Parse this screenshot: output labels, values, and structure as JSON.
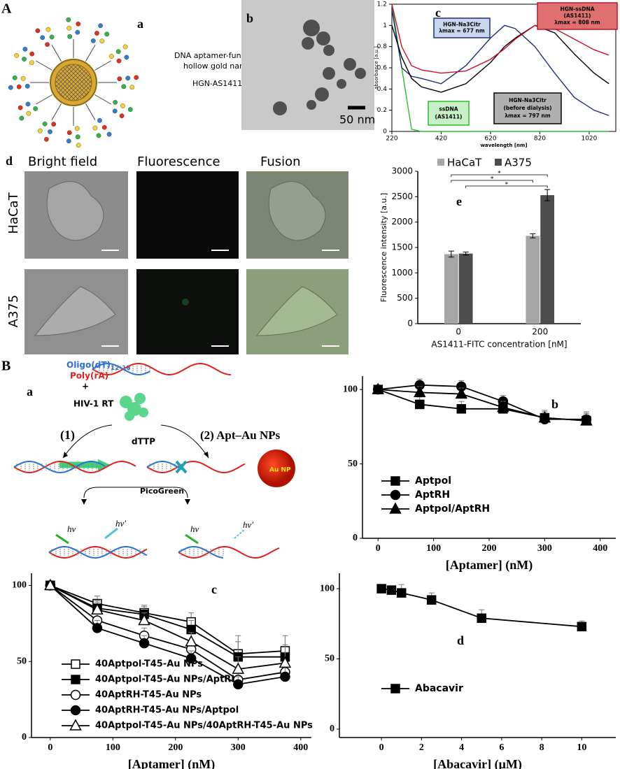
{
  "figure": {
    "label_A": "A",
    "label_B": "B"
  },
  "panel_Aa": {
    "label": "a",
    "line1": "DNA aptamer-functionalized",
    "line2": "hollow gold nanoshells",
    "line3": "HGN-AS1411"
  },
  "panel_Ab": {
    "label": "b",
    "scale": "50 nm"
  },
  "panel_d": {
    "label": "d",
    "columns": [
      "Bright field",
      "Fluorescence",
      "Fusion"
    ],
    "rows": [
      "HaCaT",
      "A375"
    ]
  },
  "panel_Ba": {
    "label": "a",
    "oligo": "Oligo(dT)",
    "oligo_sub": "12-18",
    "poly": "Poly(rA)",
    "plus": "+",
    "rt": "HIV-1 RT",
    "dttp": "dTTP",
    "route1": "(1)",
    "route2": "(2) Apt–Au NPs",
    "picogreen": "PicoGreen",
    "aunp": "Au NP",
    "hv": [
      "hν",
      "hν′",
      "hν",
      "hν′"
    ]
  },
  "chart_data": [
    {
      "type": "line",
      "panel": "c",
      "xlabel": "wavelength [nm]",
      "ylabel": "absorbance [a.u.]",
      "box": true,
      "x": [
        220,
        260,
        300,
        340,
        420,
        520,
        620,
        677,
        720,
        800,
        880,
        960,
        1040,
        1100
      ],
      "xlim": [
        220,
        1128
      ],
      "xticks": [
        220,
        420,
        620,
        820,
        1020
      ],
      "ylim": [
        0,
        1.2
      ],
      "yticks": [
        0,
        0.2,
        0.4,
        0.6,
        0.8,
        1,
        1.2
      ],
      "series": [
        {
          "name": "ssDNA",
          "notes": [
            "(AS1411)"
          ],
          "color": "#2bbf2b",
          "box_fill": "#c8f0c8",
          "values": [
            1.2,
            0.6,
            0.02,
            0,
            0,
            0,
            0,
            0,
            0,
            0,
            0,
            0,
            0,
            0
          ]
        },
        {
          "name": "HGN-Na3Citr",
          "notes": [
            "λmax = 677 nm"
          ],
          "color": "#1f2f7a",
          "box_fill": "#c9d7ee",
          "values": [
            1.15,
            0.6,
            0.52,
            0.5,
            0.45,
            0.62,
            0.88,
            1.0,
            0.97,
            0.8,
            0.55,
            0.32,
            0.2,
            0.15
          ]
        },
        {
          "name": "HGN-Na3Citr",
          "notes": [
            "(before dialysis)",
            "λmax = 797 nm"
          ],
          "color": "#000000",
          "box_fill": "#b0b0b0",
          "values": [
            1.0,
            0.7,
            0.5,
            0.42,
            0.37,
            0.45,
            0.65,
            0.8,
            0.88,
            1.0,
            0.93,
            0.73,
            0.55,
            0.45
          ]
        },
        {
          "name": "HGN-ssDNA",
          "notes": [
            "(AS1411)",
            "λmax = 808 nm"
          ],
          "color": "#c8102e",
          "box_fill": "#e07070",
          "values": [
            1.2,
            0.8,
            0.62,
            0.58,
            0.55,
            0.57,
            0.68,
            0.78,
            0.87,
            1.0,
            0.97,
            0.87,
            0.77,
            0.72
          ]
        }
      ]
    },
    {
      "type": "bar",
      "panel": "e",
      "xlabel": "AS1411-FITC concentration [nM]",
      "ylabel": "Fluorescence intensity [a.u.]",
      "categories": [
        "0",
        "200"
      ],
      "ylim": [
        0,
        3000
      ],
      "yticks": [
        0,
        500,
        1000,
        1500,
        2000,
        2500,
        3000
      ],
      "significance_labels": [
        "*",
        "*",
        "*"
      ],
      "series": [
        {
          "name": "HaCaT",
          "color": "#a6a6a6",
          "values": [
            1370,
            1730
          ],
          "errors": [
            60,
            40
          ]
        },
        {
          "name": "A375",
          "color": "#4d4d4d",
          "values": [
            1380,
            2530
          ],
          "errors": [
            30,
            110
          ]
        }
      ]
    },
    {
      "type": "line",
      "panel": "b",
      "xlabel": "[Aptamer] (nM)",
      "x": [
        0,
        75,
        150,
        225,
        300,
        375
      ],
      "xlim": [
        -28,
        428
      ],
      "xticks": [
        0,
        100,
        200,
        300,
        400
      ],
      "ylim": [
        0,
        109
      ],
      "yticks": [
        0,
        50,
        100
      ],
      "series": [
        {
          "name": "Aptpol",
          "marker": "square",
          "filled": true,
          "color": "#000000",
          "values": [
            100,
            90,
            87,
            87,
            81,
            79
          ],
          "errors": [
            0,
            5,
            5,
            7,
            5,
            5
          ]
        },
        {
          "name": "AptRH",
          "marker": "circle",
          "filled": true,
          "color": "#000000",
          "values": [
            100,
            103,
            102,
            92,
            80,
            80
          ],
          "errors": [
            0,
            4,
            4,
            4,
            5,
            5
          ]
        },
        {
          "name": "Aptpol/AptRH",
          "marker": "triangle",
          "filled": true,
          "color": "#000000",
          "values": [
            100,
            98,
            97,
            88,
            81,
            79
          ],
          "errors": [
            0,
            4,
            4,
            4,
            4,
            4
          ]
        }
      ]
    },
    {
      "type": "line",
      "panel": "c",
      "xlabel": "[Aptamer] (nM)",
      "x": [
        0,
        75,
        150,
        225,
        300,
        375
      ],
      "xlim": [
        -30,
        417
      ],
      "xticks": [
        0,
        100,
        200,
        300,
        400
      ],
      "ylim": [
        0,
        108
      ],
      "yticks": [
        0,
        50,
        100
      ],
      "series": [
        {
          "name": "40Aptpol-T45-Au NPs",
          "marker": "square",
          "filled": false,
          "color": "#000000",
          "values": [
            100,
            88,
            82,
            76,
            55,
            57
          ],
          "errors": [
            0,
            5,
            5,
            6,
            12,
            10
          ]
        },
        {
          "name": "40Aptpol-T45-Au NPs/AptRH",
          "marker": "square",
          "filled": true,
          "color": "#000000",
          "values": [
            100,
            85,
            81,
            71,
            53,
            53
          ],
          "errors": [
            0,
            5,
            5,
            6,
            10,
            8
          ]
        },
        {
          "name": "40AptRH-T45-Au NPs",
          "marker": "circle",
          "filled": false,
          "color": "#000000",
          "values": [
            100,
            77,
            67,
            58,
            38,
            43
          ],
          "errors": [
            0,
            5,
            5,
            6,
            6,
            6
          ]
        },
        {
          "name": "40AptRH-T45-Au NPs/Aptpol",
          "marker": "circle",
          "filled": true,
          "color": "#000000",
          "values": [
            100,
            72,
            62,
            52,
            35,
            40
          ],
          "errors": [
            0,
            5,
            5,
            5,
            5,
            6
          ]
        },
        {
          "name": "40Aptpol-T45-Au NPs/40AptRH-T45-Au NPs",
          "marker": "triangle",
          "filled": false,
          "color": "#000000",
          "values": [
            100,
            84,
            77,
            63,
            45,
            49
          ],
          "errors": [
            0,
            5,
            5,
            6,
            8,
            7
          ]
        }
      ]
    },
    {
      "type": "line",
      "panel": "d",
      "xlabel": "[Abacavir] (μM)",
      "x": [
        0,
        0.5,
        1,
        2.5,
        5,
        10
      ],
      "xlim": [
        -2.1,
        11.7
      ],
      "xticks": [
        0,
        2,
        4,
        6,
        8,
        10
      ],
      "ylim": [
        -6,
        111
      ],
      "yticks": [
        0,
        50,
        100
      ],
      "series": [
        {
          "name": "Abacavir",
          "marker": "square",
          "filled": true,
          "color": "#000000",
          "values": [
            100,
            99,
            97,
            92,
            79,
            73
          ],
          "errors": [
            3,
            3,
            6,
            5,
            6,
            4
          ]
        }
      ]
    }
  ]
}
